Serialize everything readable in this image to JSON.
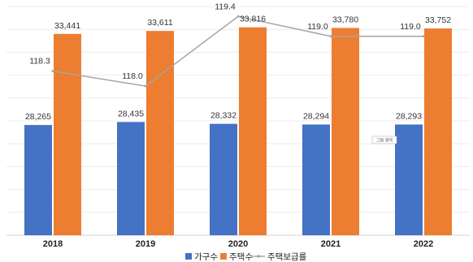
{
  "chart_data": {
    "type": "bar",
    "categories": [
      "2018",
      "2019",
      "2020",
      "2021",
      "2022"
    ],
    "series": [
      {
        "name": "가구수",
        "kind": "bar",
        "color": "#4472C4",
        "axis": "left",
        "values": [
          28265,
          28435,
          28332,
          28294,
          28293
        ],
        "labels": [
          "28,265",
          "28,435",
          "28,332",
          "28,294",
          "28,293"
        ]
      },
      {
        "name": "주택수",
        "kind": "bar",
        "color": "#ED7D31",
        "axis": "left",
        "values": [
          33441,
          33611,
          33816,
          33780,
          33752
        ],
        "labels": [
          "33,441",
          "33,611",
          "33,816",
          "33,780",
          "33,752"
        ]
      },
      {
        "name": "주택보급률",
        "kind": "line",
        "color": "#A5A5A5",
        "axis": "right",
        "values": [
          118.3,
          118.0,
          119.4,
          119.0,
          119.0
        ],
        "labels": [
          "118.3",
          "118.0",
          "119.4",
          "119.0",
          "119.0"
        ]
      }
    ],
    "ylim": [
      22000,
      35000
    ],
    "y2lim": [
      115.0,
      119.6
    ],
    "grid": true,
    "legend": "bottom",
    "annotation": "그림 영역"
  }
}
